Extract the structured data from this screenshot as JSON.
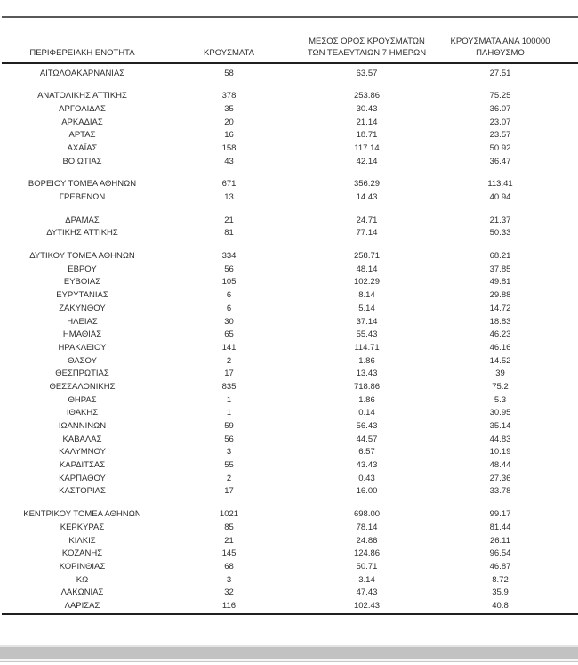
{
  "colors": {
    "text": "#2e2e2e",
    "top_rule": "#595959",
    "table_rule": "#1f1f1f",
    "chrome_gray": "#c2c2c2",
    "chrome_pink": "#d9c0b9",
    "background": "#ffffff"
  },
  "table": {
    "headers": {
      "region": "ΠΕΡΙΦΕΡΕΙΑΚΗ ΕΝΟΤΗΤΑ",
      "cases": "ΚΡΟΥΣΜΑΤΑ",
      "avg7_line1": "ΜΕΣΟΣ ΟΡΟΣ ΚΡΟΥΣΜΑΤΩΝ",
      "avg7_line2": "ΤΩΝ ΤΕΛΕΥΤΑΙΩΝ 7 ΗΜΕΡΩΝ",
      "per100k_line1": "ΚΡΟΥΣΜΑΤΑ ΑΝΑ 100000",
      "per100k_line2": "ΠΛΗΘΥΣΜΟ"
    },
    "groups": [
      [
        {
          "region": "ΑΙΤΩΛΟΑΚΑΡΝΑΝΙΑΣ",
          "cases": "58",
          "avg7": "63.57",
          "per100k": "27.51"
        }
      ],
      [
        {
          "region": "ΑΝΑΤΟΛΙΚΗΣ ΑΤΤΙΚΗΣ",
          "cases": "378",
          "avg7": "253.86",
          "per100k": "75.25"
        },
        {
          "region": "ΑΡΓΟΛΙΔΑΣ",
          "cases": "35",
          "avg7": "30.43",
          "per100k": "36.07"
        },
        {
          "region": "ΑΡΚΑΔΙΑΣ",
          "cases": "20",
          "avg7": "21.14",
          "per100k": "23.07"
        },
        {
          "region": "ΑΡΤΑΣ",
          "cases": "16",
          "avg7": "18.71",
          "per100k": "23.57"
        },
        {
          "region": "ΑΧΑΪΑΣ",
          "cases": "158",
          "avg7": "117.14",
          "per100k": "50.92"
        },
        {
          "region": "ΒΟΙΩΤΙΑΣ",
          "cases": "43",
          "avg7": "42.14",
          "per100k": "36.47"
        }
      ],
      [
        {
          "region": "ΒΟΡΕΙΟΥ ΤΟΜΕΑ ΑΘΗΝΩΝ",
          "cases": "671",
          "avg7": "356.29",
          "per100k": "113.41"
        },
        {
          "region": "ΓΡΕΒΕΝΩΝ",
          "cases": "13",
          "avg7": "14.43",
          "per100k": "40.94"
        }
      ],
      [
        {
          "region": "ΔΡΑΜΑΣ",
          "cases": "21",
          "avg7": "24.71",
          "per100k": "21.37"
        },
        {
          "region": "ΔΥΤΙΚΗΣ ΑΤΤΙΚΗΣ",
          "cases": "81",
          "avg7": "77.14",
          "per100k": "50.33"
        }
      ],
      [
        {
          "region": "ΔΥΤΙΚΟΥ ΤΟΜΕΑ ΑΘΗΝΩΝ",
          "cases": "334",
          "avg7": "258.71",
          "per100k": "68.21"
        },
        {
          "region": "ΕΒΡΟΥ",
          "cases": "56",
          "avg7": "48.14",
          "per100k": "37.85"
        },
        {
          "region": "ΕΥΒΟΙΑΣ",
          "cases": "105",
          "avg7": "102.29",
          "per100k": "49.81"
        },
        {
          "region": "ΕΥΡΥΤΑΝΙΑΣ",
          "cases": "6",
          "avg7": "8.14",
          "per100k": "29.88"
        },
        {
          "region": "ΖΑΚΥΝΘΟΥ",
          "cases": "6",
          "avg7": "5.14",
          "per100k": "14.72"
        },
        {
          "region": "ΗΛΕΙΑΣ",
          "cases": "30",
          "avg7": "37.14",
          "per100k": "18.83"
        },
        {
          "region": "ΗΜΑΘΙΑΣ",
          "cases": "65",
          "avg7": "55.43",
          "per100k": "46.23"
        },
        {
          "region": "ΗΡΑΚΛΕΙΟΥ",
          "cases": "141",
          "avg7": "114.71",
          "per100k": "46.16"
        },
        {
          "region": "ΘΑΣΟΥ",
          "cases": "2",
          "avg7": "1.86",
          "per100k": "14.52"
        },
        {
          "region": "ΘΕΣΠΡΩΤΙΑΣ",
          "cases": "17",
          "avg7": "13.43",
          "per100k": "39"
        },
        {
          "region": "ΘΕΣΣΑΛΟΝΙΚΗΣ",
          "cases": "835",
          "avg7": "718.86",
          "per100k": "75.2"
        },
        {
          "region": "ΘΗΡΑΣ",
          "cases": "1",
          "avg7": "1.86",
          "per100k": "5.3"
        },
        {
          "region": "ΙΘΑΚΗΣ",
          "cases": "1",
          "avg7": "0.14",
          "per100k": "30.95"
        },
        {
          "region": "ΙΩΑΝΝΙΝΩΝ",
          "cases": "59",
          "avg7": "56.43",
          "per100k": "35.14"
        },
        {
          "region": "ΚΑΒΑΛΑΣ",
          "cases": "56",
          "avg7": "44.57",
          "per100k": "44.83"
        },
        {
          "region": "ΚΑΛΥΜΝΟΥ",
          "cases": "3",
          "avg7": "6.57",
          "per100k": "10.19"
        },
        {
          "region": "ΚΑΡΔΙΤΣΑΣ",
          "cases": "55",
          "avg7": "43.43",
          "per100k": "48.44"
        },
        {
          "region": "ΚΑΡΠΑΘΟΥ",
          "cases": "2",
          "avg7": "0.43",
          "per100k": "27.36"
        },
        {
          "region": "ΚΑΣΤΟΡΙΑΣ",
          "cases": "17",
          "avg7": "16.00",
          "per100k": "33.78"
        }
      ],
      [
        {
          "region": "ΚΕΝΤΡΙΚΟΥ ΤΟΜΕΑ ΑΘΗΝΩΝ",
          "cases": "1021",
          "avg7": "698.00",
          "per100k": "99.17"
        },
        {
          "region": "ΚΕΡΚΥΡΑΣ",
          "cases": "85",
          "avg7": "78.14",
          "per100k": "81.44"
        },
        {
          "region": "ΚΙΛΚΙΣ",
          "cases": "21",
          "avg7": "24.86",
          "per100k": "26.11"
        },
        {
          "region": "ΚΟΖΑΝΗΣ",
          "cases": "145",
          "avg7": "124.86",
          "per100k": "96.54"
        },
        {
          "region": "ΚΟΡΙΝΘΙΑΣ",
          "cases": "68",
          "avg7": "50.71",
          "per100k": "46.87"
        },
        {
          "region": "ΚΩ",
          "cases": "3",
          "avg7": "3.14",
          "per100k": "8.72"
        },
        {
          "region": "ΛΑΚΩΝΙΑΣ",
          "cases": "32",
          "avg7": "47.43",
          "per100k": "35.9"
        },
        {
          "region": "ΛΑΡΙΣΑΣ",
          "cases": "116",
          "avg7": "102.43",
          "per100k": "40.8"
        }
      ]
    ]
  }
}
